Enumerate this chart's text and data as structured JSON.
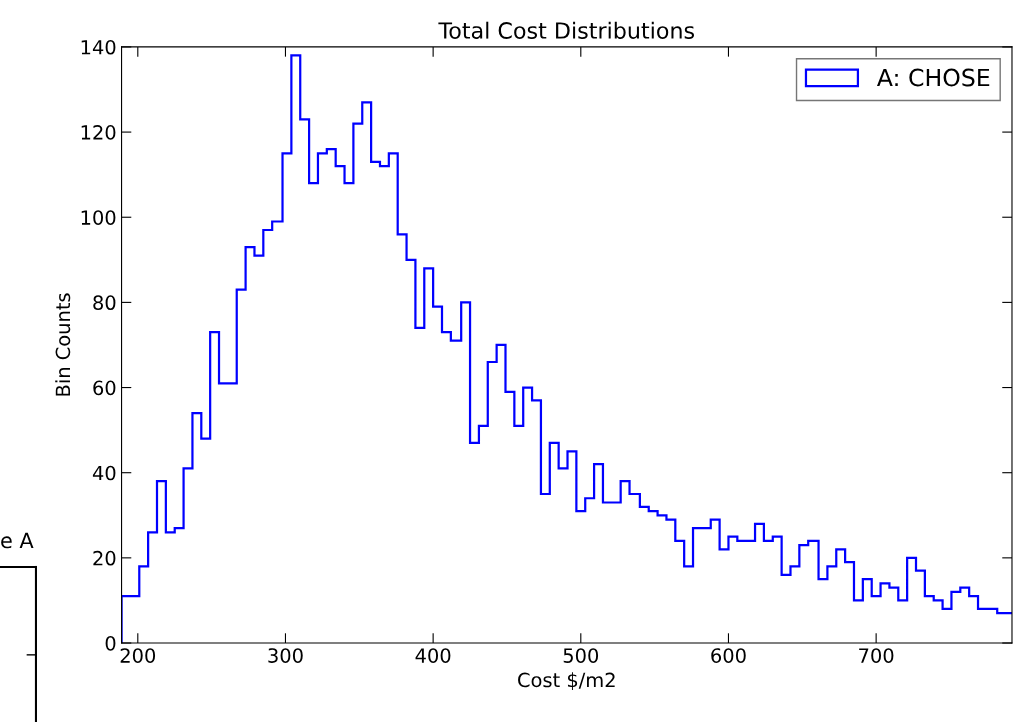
{
  "chart_data": {
    "type": "histogram",
    "title": "Total Cost Distributions",
    "xlabel": "Cost $/m2",
    "ylabel": "Bin Counts",
    "bins": [
      189,
      195,
      201,
      207,
      213,
      219,
      225,
      231,
      237,
      243,
      249,
      255,
      261,
      267,
      273,
      279,
      285,
      291,
      298,
      304,
      310,
      316,
      322,
      328,
      334,
      340,
      346,
      352,
      358,
      364,
      370,
      376,
      382,
      388,
      394,
      400,
      406,
      412,
      419,
      425,
      431,
      437,
      443,
      449,
      455,
      461,
      467,
      473,
      479,
      485,
      491,
      497,
      503,
      509,
      515,
      521,
      527,
      533,
      540,
      546,
      552,
      558,
      564,
      570,
      576,
      582,
      588,
      594,
      600,
      606,
      612,
      618,
      624,
      630,
      636,
      642,
      648,
      654,
      661,
      667,
      673,
      679,
      685,
      691,
      697,
      703,
      709,
      715,
      721,
      727,
      733,
      739,
      745,
      751,
      757,
      763,
      769,
      775,
      782,
      788,
      794
    ],
    "series": [
      {
        "name": "A: CHOSE",
        "color": "#0000ff",
        "values": [
          11,
          11,
          18,
          26,
          38,
          26,
          27,
          41,
          54,
          48,
          73,
          61,
          61,
          83,
          93,
          91,
          97,
          99,
          115,
          138,
          123,
          108,
          115,
          116,
          112,
          108,
          122,
          127,
          113,
          112,
          115,
          96,
          90,
          74,
          88,
          79,
          73,
          71,
          80,
          47,
          51,
          66,
          70,
          59,
          51,
          60,
          57,
          35,
          47,
          41,
          45,
          31,
          34,
          42,
          33,
          33,
          38,
          35,
          32,
          31,
          30,
          29,
          24,
          18,
          27,
          27,
          29,
          22,
          25,
          24,
          24,
          28,
          24,
          25,
          16,
          18,
          23,
          24,
          15,
          18,
          22,
          19,
          10,
          15,
          11,
          14,
          13,
          10,
          20,
          17,
          11,
          10,
          8,
          12,
          13,
          11,
          8,
          8,
          7,
          7
        ]
      }
    ],
    "xlim": [
      189,
      792
    ],
    "ylim": [
      0,
      140
    ],
    "xticks": [
      200,
      300,
      400,
      500,
      600,
      700
    ],
    "yticks": [
      0,
      20,
      40,
      60,
      80,
      100,
      120,
      140
    ],
    "legend": "top right",
    "grid": false,
    "annotations": [
      "e A"
    ]
  }
}
